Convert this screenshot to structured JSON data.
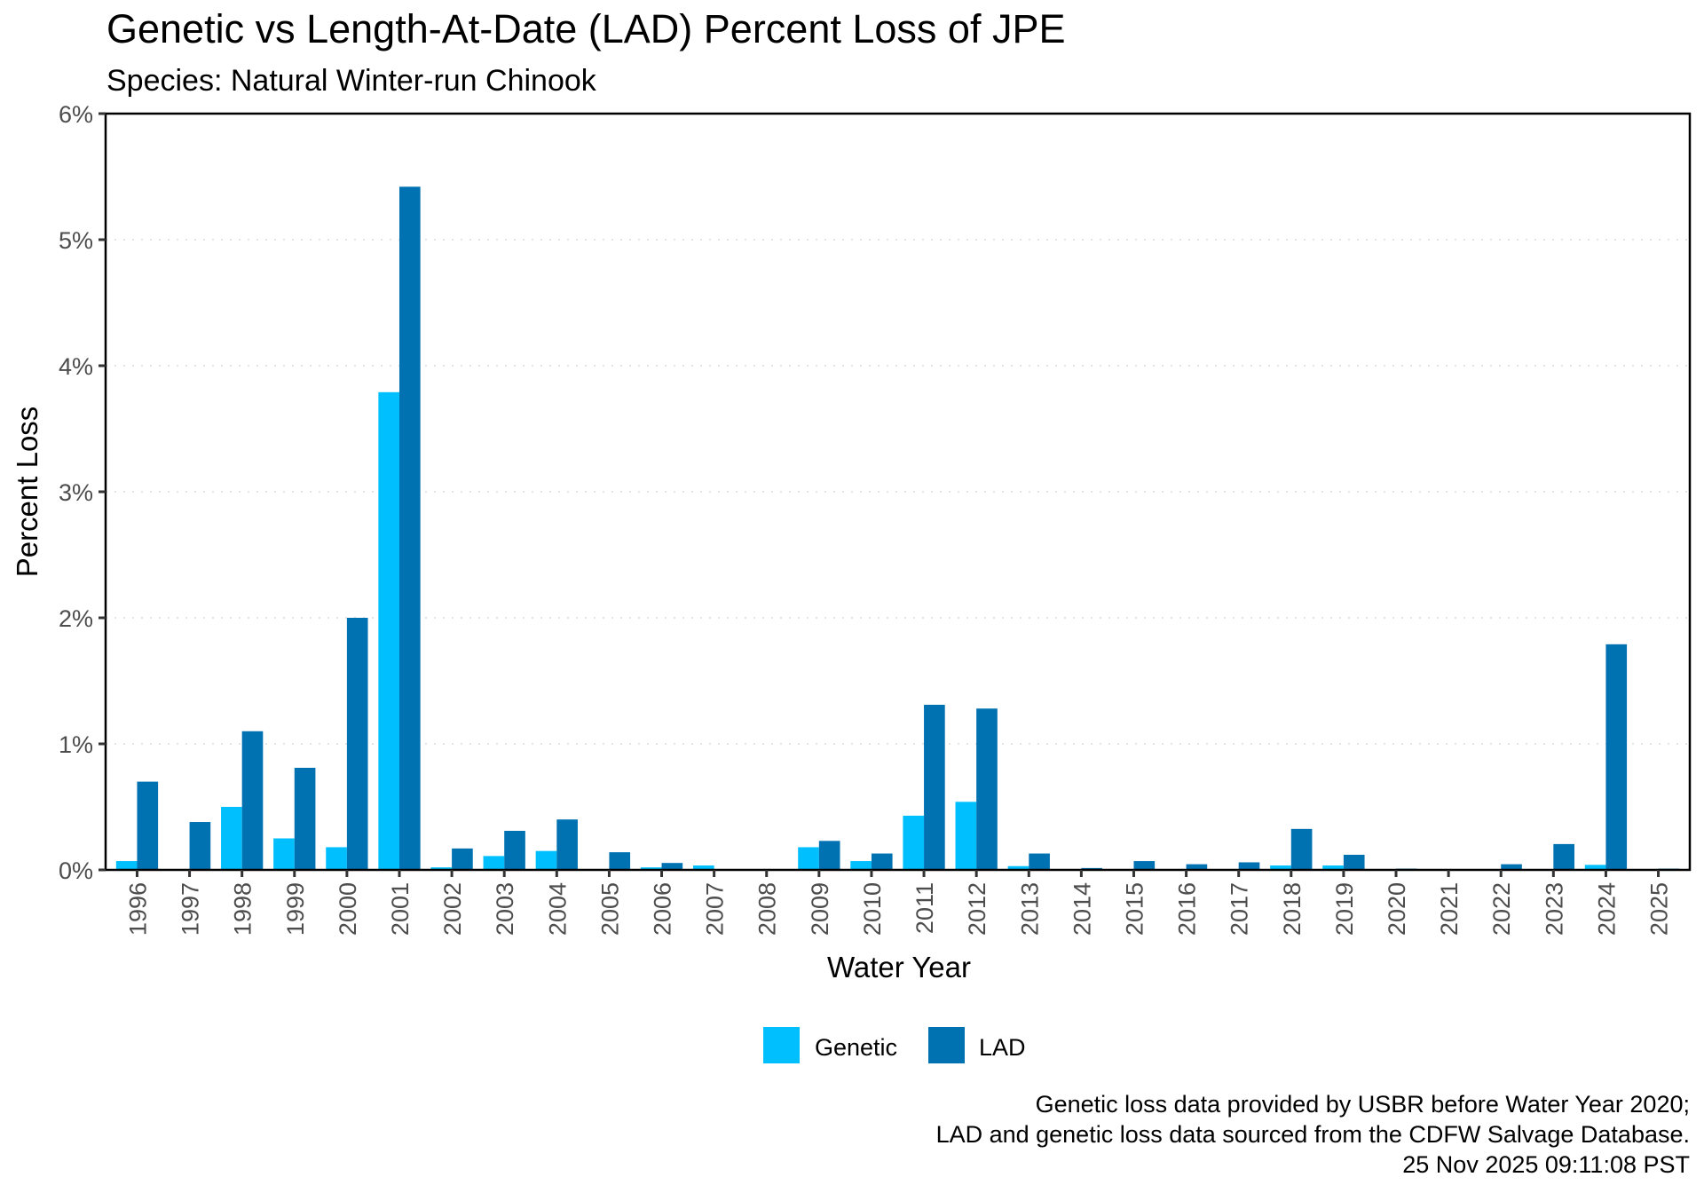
{
  "chart_data": {
    "type": "bar",
    "title": "Genetic vs Length-At-Date (LAD) Percent Loss of JPE",
    "subtitle": "Species: Natural Winter-run Chinook",
    "xlabel": "Water Year",
    "ylabel": "Percent Loss",
    "ylim": [
      0,
      6
    ],
    "y_unit": "%",
    "yticks": [
      0,
      1,
      2,
      3,
      4,
      5,
      6
    ],
    "ytick_labels": [
      "0%",
      "1%",
      "2%",
      "3%",
      "4%",
      "5%",
      "6%"
    ],
    "grid": "horizontal major, dotted",
    "legend_position": "bottom",
    "categories": [
      "1996",
      "1997",
      "1998",
      "1999",
      "2000",
      "2001",
      "2002",
      "2003",
      "2004",
      "2005",
      "2006",
      "2007",
      "2008",
      "2009",
      "2010",
      "2011",
      "2012",
      "2013",
      "2014",
      "2015",
      "2016",
      "2017",
      "2018",
      "2019",
      "2020",
      "2021",
      "2022",
      "2023",
      "2024",
      "2025"
    ],
    "series": [
      {
        "name": "Genetic",
        "color": "#00BFFF",
        "values": [
          0.07,
          0,
          0.5,
          0.25,
          0.18,
          3.79,
          0.02,
          0.11,
          0.15,
          0,
          0.02,
          0.035,
          0,
          0.18,
          0.07,
          0.43,
          0.54,
          0.03,
          0.005,
          0,
          0.003,
          0,
          0.035,
          0.035,
          0.003,
          0,
          0,
          0,
          0.04,
          0.005
        ]
      },
      {
        "name": "LAD",
        "color": "#0072B2",
        "values": [
          0.7,
          0.38,
          1.1,
          0.81,
          2.0,
          5.42,
          0.17,
          0.31,
          0.4,
          0.14,
          0.055,
          0,
          0,
          0.23,
          0.13,
          1.31,
          1.28,
          0.13,
          0.015,
          0.07,
          0.045,
          0.06,
          0.325,
          0.12,
          0.01,
          0.003,
          0.045,
          0.205,
          1.79,
          0.01
        ]
      }
    ],
    "caption_lines": [
      "Genetic loss data provided by USBR before Water Year 2020;",
      "LAD and genetic loss data sourced from the CDFW Salvage Database.",
      "25 Nov 2025 09:11:08 PST"
    ]
  }
}
